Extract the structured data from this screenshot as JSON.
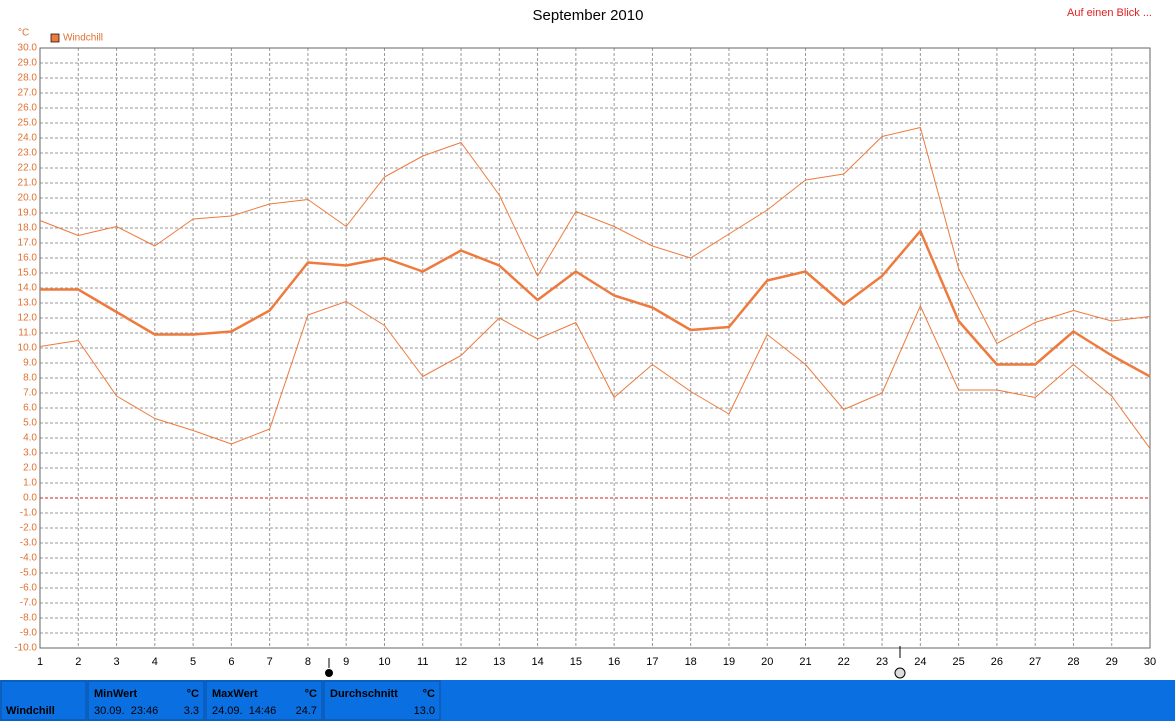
{
  "chart_data": {
    "type": "line",
    "title": "September 2010",
    "y_unit": "°C",
    "link": "Auf einen Blick ...",
    "x": [
      1,
      2,
      3,
      4,
      5,
      6,
      7,
      8,
      9,
      10,
      11,
      12,
      13,
      14,
      15,
      16,
      17,
      18,
      19,
      20,
      21,
      22,
      23,
      24,
      25,
      26,
      27,
      28,
      29,
      30
    ],
    "xlim": [
      1,
      30
    ],
    "xticks": [
      1,
      2,
      3,
      4,
      5,
      6,
      7,
      8,
      9,
      10,
      11,
      12,
      13,
      14,
      15,
      16,
      17,
      18,
      19,
      20,
      21,
      22,
      23,
      24,
      25,
      26,
      27,
      28,
      29,
      30
    ],
    "ylim": [
      -10,
      30
    ],
    "yticks": [
      {
        "value": -10,
        "label": "-10.0"
      },
      {
        "value": -9,
        "label": "-9.0"
      },
      {
        "value": -8,
        "label": "-8.0"
      },
      {
        "value": -7,
        "label": "-7.0"
      },
      {
        "value": -6,
        "label": "-6.0"
      },
      {
        "value": -5,
        "label": "-5.0"
      },
      {
        "value": -4,
        "label": "-4.0"
      },
      {
        "value": -3,
        "label": "-3.0"
      },
      {
        "value": -2,
        "label": "-2.0"
      },
      {
        "value": -1,
        "label": "-1.0"
      },
      {
        "value": 0,
        "label": "0.0"
      },
      {
        "value": 1,
        "label": "1.0"
      },
      {
        "value": 2,
        "label": "2.0"
      },
      {
        "value": 3,
        "label": "3.0"
      },
      {
        "value": 4,
        "label": "4.0"
      },
      {
        "value": 5,
        "label": "5.0"
      },
      {
        "value": 6,
        "label": "6.0"
      },
      {
        "value": 7,
        "label": "7.0"
      },
      {
        "value": 8,
        "label": "8.0"
      },
      {
        "value": 9,
        "label": "9.0"
      },
      {
        "value": 10,
        "label": "10.0"
      },
      {
        "value": 11,
        "label": "11.0"
      },
      {
        "value": 12,
        "label": "12.0"
      },
      {
        "value": 13,
        "label": "13.0"
      },
      {
        "value": 14,
        "label": "14.0"
      },
      {
        "value": 15,
        "label": "15.0"
      },
      {
        "value": 16,
        "label": "16.0"
      },
      {
        "value": 17,
        "label": "17.0"
      },
      {
        "value": 18,
        "label": "18.0"
      },
      {
        "value": 19,
        "label": "19.0"
      },
      {
        "value": 20,
        "label": "20.0"
      },
      {
        "value": 21,
        "label": "21.0"
      },
      {
        "value": 22,
        "label": "22.0"
      },
      {
        "value": 23,
        "label": "23.0"
      },
      {
        "value": 24,
        "label": "24.0"
      },
      {
        "value": 25,
        "label": "25.0"
      },
      {
        "value": 26,
        "label": "26.0"
      },
      {
        "value": 27,
        "label": "27.0"
      },
      {
        "value": 28,
        "label": "28.0"
      },
      {
        "value": 29,
        "label": "29.0"
      },
      {
        "value": 30,
        "label": "30.0"
      }
    ],
    "grid": true,
    "zero_line_color": "#cc2222",
    "legend": "top-left",
    "series": [
      {
        "color": "#ee7a3e",
        "line_width": 1,
        "values": [
          18.5,
          17.5,
          18.1,
          16.8,
          18.6,
          18.8,
          19.6,
          19.9,
          18.1,
          21.4,
          22.8,
          23.7,
          20.2,
          14.8,
          19.1,
          18.1,
          16.8,
          16.0,
          17.6,
          19.2,
          21.2,
          21.6,
          24.1,
          24.7,
          15.3,
          10.3,
          11.7,
          12.5,
          11.8,
          12.1
        ]
      },
      {
        "name": "Windchill",
        "color": "#ee7a3e",
        "line_width": 2.5,
        "values": [
          13.9,
          13.9,
          12.4,
          10.9,
          10.9,
          11.1,
          12.5,
          15.7,
          15.5,
          16.0,
          15.1,
          16.5,
          15.5,
          13.2,
          15.1,
          13.5,
          12.7,
          11.2,
          11.4,
          14.5,
          15.1,
          12.9,
          14.8,
          17.8,
          11.8,
          8.9,
          8.9,
          11.1,
          9.5,
          8.1
        ]
      },
      {
        "color": "#ee7a3e",
        "line_width": 1,
        "values": [
          10.1,
          10.5,
          6.8,
          5.3,
          4.5,
          3.6,
          4.6,
          12.2,
          13.1,
          11.5,
          8.1,
          9.5,
          12.0,
          10.6,
          11.7,
          6.7,
          8.9,
          7.1,
          5.6,
          10.9,
          8.9,
          5.9,
          7.0,
          12.8,
          7.2,
          7.2,
          6.7,
          8.9,
          6.8,
          3.3
        ]
      }
    ]
  },
  "summary": {
    "label": "Windchill",
    "cells": [
      {
        "title": "MinWert",
        "unit": "°C",
        "time": "30.09.  23:46",
        "value": "3.3"
      },
      {
        "title": "MaxWert",
        "unit": "°C",
        "time": "24.09.  14:46",
        "value": "24.7"
      },
      {
        "title": "Durchschnitt",
        "unit": "°C",
        "value": "13.0"
      }
    ]
  }
}
